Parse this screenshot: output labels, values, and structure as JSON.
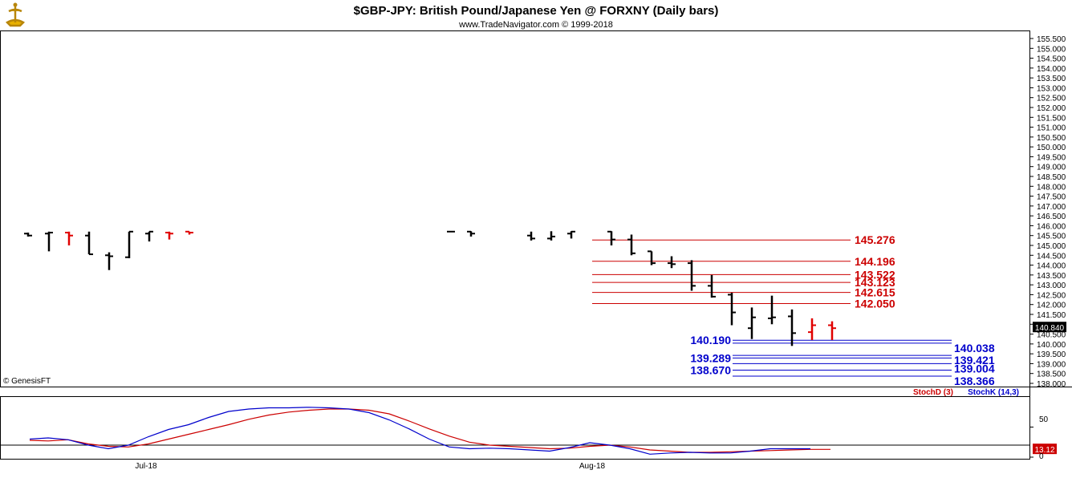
{
  "header": {
    "title": "$GBP-JPY:  British Pound/Japanese Yen @ FORXNY  (Daily bars)",
    "subtitle": "www.TradeNavigator.com © 1999-2018"
  },
  "footer": {
    "copyright": "© GenesisFT"
  },
  "colors": {
    "up_bar": "#000000",
    "down_bar": "#e00000",
    "resistance": "#cc0000",
    "support": "#0000cc",
    "stoch_d": "#cc0000",
    "stoch_k": "#0000cc",
    "price_tag_bg": "#000000",
    "stoch_tag_bg": "#cc0000"
  },
  "chart_data": [
    {
      "type": "ohlc",
      "title": "$GBP-JPY:  British Pound/Japanese Yen @ FORXNY  (Daily bars)",
      "ylim": [
        137.9,
        155.6
      ],
      "y_ticks": [
        "155.500",
        "155.000",
        "154.500",
        "154.000",
        "153.500",
        "153.000",
        "152.500",
        "152.000",
        "151.500",
        "151.000",
        "150.500",
        "150.000",
        "149.500",
        "149.000",
        "148.500",
        "148.000",
        "147.500",
        "147.000",
        "146.500",
        "146.000",
        "145.500",
        "145.000",
        "144.500",
        "144.000",
        "143.500",
        "143.000",
        "142.500",
        "142.000",
        "141.500",
        "141.000",
        "140.500",
        "140.000",
        "139.500",
        "139.000",
        "138.500",
        "138.000"
      ],
      "last_price": "140.840",
      "last_price_value": 140.84,
      "x_labels": [
        "Jul-18",
        "Aug-18"
      ],
      "bars": [
        {
          "x": 35,
          "o": 145.6,
          "h": 145.65,
          "l": 145.45,
          "c": 145.5,
          "d": "up"
        },
        {
          "x": 61,
          "o": 145.6,
          "h": 145.7,
          "l": 144.7,
          "c": 145.65,
          "d": "up"
        },
        {
          "x": 86,
          "o": 145.65,
          "h": 145.7,
          "l": 145.0,
          "c": 145.5,
          "d": "down"
        },
        {
          "x": 111,
          "o": 145.5,
          "h": 145.7,
          "l": 144.55,
          "c": 144.55,
          "d": "up"
        },
        {
          "x": 136,
          "o": 144.5,
          "h": 144.65,
          "l": 143.75,
          "c": 144.45,
          "d": "up"
        },
        {
          "x": 161,
          "o": 144.4,
          "h": 145.7,
          "l": 144.35,
          "c": 145.7,
          "d": "up"
        },
        {
          "x": 186,
          "o": 145.6,
          "h": 145.7,
          "l": 145.2,
          "c": 145.7,
          "d": "up"
        },
        {
          "x": 211,
          "o": 145.65,
          "h": 145.7,
          "l": 145.3,
          "c": 145.6,
          "d": "down"
        },
        {
          "x": 236,
          "o": 145.7,
          "h": 145.7,
          "l": 145.55,
          "c": 145.65,
          "d": "down"
        },
        {
          "x": 562,
          "o": 145.7,
          "h": 145.72,
          "l": 145.68,
          "c": 145.7,
          "d": "up"
        },
        {
          "x": 587,
          "o": 145.7,
          "h": 145.72,
          "l": 145.45,
          "c": 145.6,
          "d": "up"
        },
        {
          "x": 662,
          "o": 145.5,
          "h": 145.7,
          "l": 145.25,
          "c": 145.35,
          "d": "up"
        },
        {
          "x": 687,
          "o": 145.35,
          "h": 145.72,
          "l": 145.25,
          "c": 145.45,
          "d": "up"
        },
        {
          "x": 712,
          "o": 145.6,
          "h": 145.72,
          "l": 145.35,
          "c": 145.7,
          "d": "up"
        },
        {
          "x": 762,
          "o": 145.7,
          "h": 145.72,
          "l": 145.0,
          "c": 145.3,
          "d": "up"
        },
        {
          "x": 787,
          "o": 145.3,
          "h": 145.55,
          "l": 144.5,
          "c": 144.6,
          "d": "up"
        },
        {
          "x": 812,
          "o": 144.7,
          "h": 144.7,
          "l": 144.0,
          "c": 144.1,
          "d": "up"
        },
        {
          "x": 837,
          "o": 144.1,
          "h": 144.45,
          "l": 143.85,
          "c": 144.05,
          "d": "up"
        },
        {
          "x": 862,
          "o": 144.1,
          "h": 144.25,
          "l": 142.7,
          "c": 142.95,
          "d": "up"
        },
        {
          "x": 887,
          "o": 142.95,
          "h": 143.5,
          "l": 142.35,
          "c": 142.4,
          "d": "up"
        },
        {
          "x": 912,
          "o": 142.5,
          "h": 142.6,
          "l": 140.95,
          "c": 141.6,
          "d": "up"
        },
        {
          "x": 937,
          "o": 140.8,
          "h": 141.85,
          "l": 140.25,
          "c": 141.35,
          "d": "up"
        },
        {
          "x": 962,
          "o": 141.3,
          "h": 142.45,
          "l": 141.0,
          "c": 141.35,
          "d": "up"
        },
        {
          "x": 987,
          "o": 141.4,
          "h": 141.75,
          "l": 139.9,
          "c": 140.55,
          "d": "up"
        },
        {
          "x": 1012,
          "o": 140.6,
          "h": 141.3,
          "l": 140.2,
          "c": 140.95,
          "d": "down"
        },
        {
          "x": 1037,
          "o": 140.95,
          "h": 141.15,
          "l": 140.2,
          "c": 140.8,
          "d": "down"
        }
      ],
      "resistance_levels": [
        {
          "value": 145.276,
          "label": "145.276",
          "x1": 738,
          "x2": 1060
        },
        {
          "value": 144.196,
          "label": "144.196",
          "x1": 738,
          "x2": 1060
        },
        {
          "value": 143.522,
          "label": "143.522",
          "x1": 738,
          "x2": 1060
        },
        {
          "value": 143.123,
          "label": "143.123",
          "x1": 738,
          "x2": 1060
        },
        {
          "value": 142.615,
          "label": "142.615",
          "x1": 738,
          "x2": 1060
        },
        {
          "value": 142.05,
          "label": "142.050",
          "x1": 738,
          "x2": 1060
        }
      ],
      "support_levels": [
        {
          "value": 140.19,
          "label": "140.190",
          "x1": 913,
          "x2": 1186,
          "label_side": "left"
        },
        {
          "value": 140.038,
          "label": "140.038",
          "x1": 913,
          "x2": 1186,
          "label_side": "right"
        },
        {
          "value": 139.421,
          "label": "139.421",
          "x1": 913,
          "x2": 1186,
          "label_side": "right"
        },
        {
          "value": 139.289,
          "label": "139.289",
          "x1": 913,
          "x2": 1186,
          "label_side": "left"
        },
        {
          "value": 139.004,
          "label": "139.004",
          "x1": 913,
          "x2": 1186,
          "label_side": "right"
        },
        {
          "value": 138.67,
          "label": "138.670",
          "x1": 913,
          "x2": 1186,
          "label_side": "left"
        },
        {
          "value": 138.366,
          "label": "138.366",
          "x1": 913,
          "x2": 1186,
          "label_side": "right"
        }
      ]
    },
    {
      "type": "line",
      "ylim": [
        0,
        100
      ],
      "y_ticks": [
        "50",
        "0"
      ],
      "reference_line": 20,
      "last_value": "13.12",
      "last_value_num": 13.12,
      "legend": {
        "stoch_d": "StochD (3)",
        "stoch_k": "StochK (14,3)"
      },
      "series": [
        {
          "name": "StochD (3)",
          "key": "stoch_d",
          "points": [
            [
              37,
              28
            ],
            [
              60,
              27
            ],
            [
              85,
              29
            ],
            [
              110,
              22
            ],
            [
              135,
              18
            ],
            [
              160,
              17
            ],
            [
              185,
              22
            ],
            [
              210,
              30
            ],
            [
              235,
              38
            ],
            [
              260,
              46
            ],
            [
              285,
              54
            ],
            [
              310,
              63
            ],
            [
              335,
              70
            ],
            [
              360,
              75
            ],
            [
              385,
              78
            ],
            [
              410,
              80
            ],
            [
              435,
              80
            ],
            [
              460,
              78
            ],
            [
              485,
              72
            ],
            [
              510,
              60
            ],
            [
              535,
              47
            ],
            [
              560,
              35
            ],
            [
              585,
              25
            ],
            [
              610,
              20
            ],
            [
              635,
              18
            ],
            [
              660,
              16
            ],
            [
              685,
              14
            ],
            [
              710,
              15
            ],
            [
              735,
              18
            ],
            [
              760,
              20
            ],
            [
              785,
              17
            ],
            [
              810,
              12
            ],
            [
              835,
              10
            ],
            [
              860,
              8
            ],
            [
              885,
              8
            ],
            [
              910,
              9
            ],
            [
              935,
              10
            ],
            [
              960,
              11
            ],
            [
              985,
              12
            ],
            [
              1010,
              13
            ],
            [
              1035,
              13
            ]
          ]
        },
        {
          "name": "StochK (14,3)",
          "key": "stoch_k",
          "points": [
            [
              37,
              30
            ],
            [
              60,
              32
            ],
            [
              85,
              29
            ],
            [
              110,
              20
            ],
            [
              135,
              14
            ],
            [
              160,
              20
            ],
            [
              185,
              34
            ],
            [
              210,
              46
            ],
            [
              235,
              54
            ],
            [
              260,
              66
            ],
            [
              285,
              76
            ],
            [
              310,
              80
            ],
            [
              335,
              82
            ],
            [
              360,
              82
            ],
            [
              385,
              83
            ],
            [
              410,
              82
            ],
            [
              435,
              80
            ],
            [
              460,
              74
            ],
            [
              485,
              62
            ],
            [
              510,
              47
            ],
            [
              535,
              30
            ],
            [
              560,
              17
            ],
            [
              585,
              14
            ],
            [
              610,
              15
            ],
            [
              635,
              14
            ],
            [
              660,
              12
            ],
            [
              685,
              10
            ],
            [
              710,
              16
            ],
            [
              735,
              24
            ],
            [
              760,
              20
            ],
            [
              785,
              14
            ],
            [
              810,
              5
            ],
            [
              835,
              7
            ],
            [
              860,
              8
            ],
            [
              885,
              7
            ],
            [
              910,
              7
            ],
            [
              935,
              10
            ],
            [
              960,
              14
            ],
            [
              985,
              14
            ],
            [
              1010,
              14
            ]
          ]
        }
      ]
    }
  ]
}
